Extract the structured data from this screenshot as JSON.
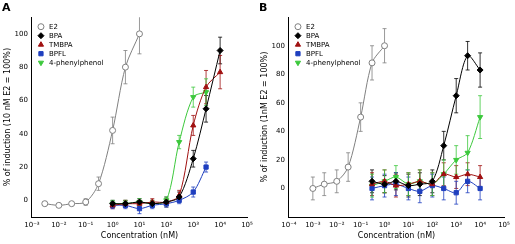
{
  "chart_data": [
    {
      "type": "line",
      "title": "A",
      "x_label": "Concentration (nM)",
      "y_label": "% of induction (10 nM E2 = 100%)",
      "log": "x",
      "grid": false,
      "legend": "upper left",
      "xlim": [
        0.001,
        100000
      ],
      "xticks": [
        {
          "value": 0.001,
          "label": "10⁻³"
        },
        {
          "value": 0.01,
          "label": "10⁻²"
        },
        {
          "value": 0.1,
          "label": "10⁻¹"
        },
        {
          "value": 1,
          "label": "10⁰"
        },
        {
          "value": 10,
          "label": "10¹"
        },
        {
          "value": 100,
          "label": "10²"
        },
        {
          "value": 1000,
          "label": "10³"
        },
        {
          "value": 10000,
          "label": "10⁴"
        },
        {
          "value": 100000,
          "label": "10⁵"
        }
      ],
      "ylim": [
        -10,
        110
      ],
      "yticks": [
        0,
        20,
        40,
        60,
        80,
        100
      ],
      "series": [
        {
          "name": "E2",
          "color": "#808080",
          "marker": "circle_open",
          "x": [
            0.003,
            0.01,
            0.03,
            0.1,
            0.3,
            1,
            3,
            10
          ],
          "values": [
            -2,
            -3,
            -2,
            -1,
            10,
            42,
            80,
            100
          ],
          "errors": [
            1,
            1,
            1,
            2,
            4,
            8,
            10,
            12
          ]
        },
        {
          "name": "BPA",
          "color": "#000000",
          "marker": "diamond",
          "x": [
            1,
            3,
            10,
            30,
            100,
            300,
            1000,
            3000,
            10000
          ],
          "values": [
            -2,
            -2,
            -1,
            -2,
            -1,
            2,
            25,
            55,
            90
          ],
          "errors": [
            2,
            2,
            2,
            2,
            3,
            3,
            5,
            8,
            8
          ]
        },
        {
          "name": "TMBPA",
          "color": "#a01010",
          "marker": "triangle",
          "x": [
            1,
            3,
            10,
            30,
            100,
            300,
            1000,
            3000,
            10000
          ],
          "values": [
            -3,
            -2,
            -2,
            -1,
            -1,
            3,
            45,
            68,
            77
          ],
          "errors": [
            2,
            2,
            2,
            2,
            2,
            3,
            6,
            10,
            10
          ]
        },
        {
          "name": "BPFL",
          "color": "#1f3fbf",
          "marker": "square",
          "x": [
            1,
            3,
            10,
            30,
            100,
            300,
            1000,
            3000
          ],
          "values": [
            -3,
            -3,
            -5,
            -3,
            -2,
            0,
            5,
            20
          ],
          "errors": [
            2,
            2,
            3,
            2,
            2,
            2,
            3,
            3
          ]
        },
        {
          "name": "4-phenylphenol",
          "color": "#3cc83c",
          "marker": "triangle_down",
          "x": [
            1,
            3,
            10,
            30,
            100,
            300,
            1000,
            3000
          ],
          "values": [
            -2,
            -2,
            -1,
            -2,
            0,
            35,
            62,
            65
          ],
          "errors": [
            2,
            2,
            2,
            2,
            2,
            4,
            6,
            8
          ]
        }
      ]
    },
    {
      "type": "line",
      "title": "B",
      "x_label": "Concentration (nM)",
      "y_label": "% of induction (1nM E2 = 100%)",
      "log": "x",
      "grid": false,
      "legend": "upper left",
      "xlim": [
        0.0001,
        100000
      ],
      "xticks": [
        {
          "value": 0.0001,
          "label": "10⁻⁴"
        },
        {
          "value": 0.001,
          "label": "10⁻³"
        },
        {
          "value": 0.01,
          "label": "10⁻²"
        },
        {
          "value": 0.1,
          "label": "10⁻¹"
        },
        {
          "value": 1,
          "label": "10⁰"
        },
        {
          "value": 10,
          "label": "10¹"
        },
        {
          "value": 100,
          "label": "10²"
        },
        {
          "value": 1000,
          "label": "10³"
        },
        {
          "value": 10000,
          "label": "10⁴"
        },
        {
          "value": 100000,
          "label": "10⁵"
        }
      ],
      "ylim": [
        -20,
        120
      ],
      "yticks": [
        0,
        20,
        40,
        60,
        80,
        100
      ],
      "series": [
        {
          "name": "E2",
          "color": "#808080",
          "marker": "circle_open",
          "x": [
            0.001,
            0.003,
            0.01,
            0.03,
            0.1,
            0.3,
            1
          ],
          "values": [
            0,
            3,
            5,
            15,
            50,
            88,
            100
          ],
          "errors": [
            8,
            8,
            8,
            10,
            10,
            12,
            12
          ]
        },
        {
          "name": "BPA",
          "color": "#000000",
          "marker": "diamond",
          "x": [
            0.3,
            1,
            3,
            10,
            30,
            100,
            300,
            1000,
            3000,
            10000
          ],
          "values": [
            5,
            3,
            5,
            2,
            3,
            5,
            30,
            65,
            93,
            83
          ],
          "errors": [
            8,
            6,
            6,
            8,
            8,
            8,
            10,
            12,
            10,
            12
          ]
        },
        {
          "name": "TMBPA",
          "color": "#a01010",
          "marker": "triangle",
          "x": [
            0.3,
            1,
            3,
            10,
            30,
            100,
            300,
            1000,
            3000,
            10000
          ],
          "values": [
            3,
            5,
            2,
            3,
            5,
            3,
            10,
            8,
            10,
            8
          ],
          "errors": [
            8,
            8,
            8,
            8,
            8,
            8,
            8,
            8,
            8,
            8
          ]
        },
        {
          "name": "BPFL",
          "color": "#1f3fbf",
          "marker": "square",
          "x": [
            0.3,
            1,
            3,
            10,
            30,
            100,
            300,
            1000,
            3000,
            10000
          ],
          "values": [
            0,
            2,
            3,
            0,
            -2,
            2,
            0,
            -3,
            5,
            0
          ],
          "errors": [
            8,
            8,
            8,
            8,
            8,
            8,
            8,
            8,
            8,
            8
          ]
        },
        {
          "name": "4-phenylphenol",
          "color": "#3cc83c",
          "marker": "triangle_down",
          "x": [
            0.3,
            1,
            3,
            10,
            30,
            100,
            300,
            1000,
            3000,
            10000
          ],
          "values": [
            2,
            5,
            8,
            3,
            5,
            3,
            10,
            20,
            25,
            50
          ],
          "errors": [
            8,
            8,
            8,
            8,
            8,
            8,
            10,
            10,
            12,
            15
          ]
        }
      ]
    }
  ]
}
